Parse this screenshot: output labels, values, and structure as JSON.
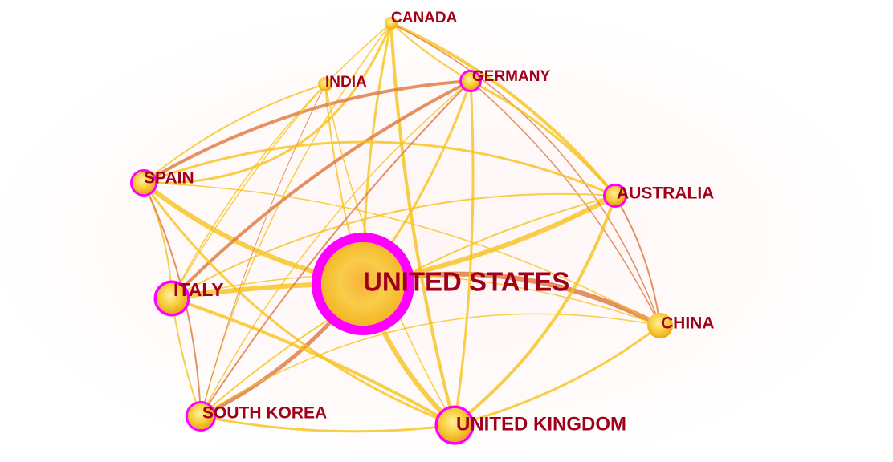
{
  "network": {
    "nodes": [
      {
        "id": "usa",
        "label": "UNITED STATES",
        "centrality_ring": true
      },
      {
        "id": "uk",
        "label": "UNITED KINGDOM",
        "centrality_ring": true
      },
      {
        "id": "canada",
        "label": "CANADA",
        "centrality_ring": false
      },
      {
        "id": "india",
        "label": "INDIA",
        "centrality_ring": false
      },
      {
        "id": "germany",
        "label": "GERMANY",
        "centrality_ring": true
      },
      {
        "id": "spain",
        "label": "SPAIN",
        "centrality_ring": true
      },
      {
        "id": "australia",
        "label": "AUSTRALIA",
        "centrality_ring": true
      },
      {
        "id": "italy",
        "label": "ITALY",
        "centrality_ring": true
      },
      {
        "id": "china",
        "label": "CHINA",
        "centrality_ring": false
      },
      {
        "id": "south_korea",
        "label": "SOUTH KOREA",
        "centrality_ring": true
      }
    ],
    "colors": {
      "label": "#a0001a",
      "ring": "#ff00ff",
      "node_fill": "#f7c83a",
      "edge_gold": "#f6c21c",
      "edge_orange": "#e07e46"
    }
  }
}
